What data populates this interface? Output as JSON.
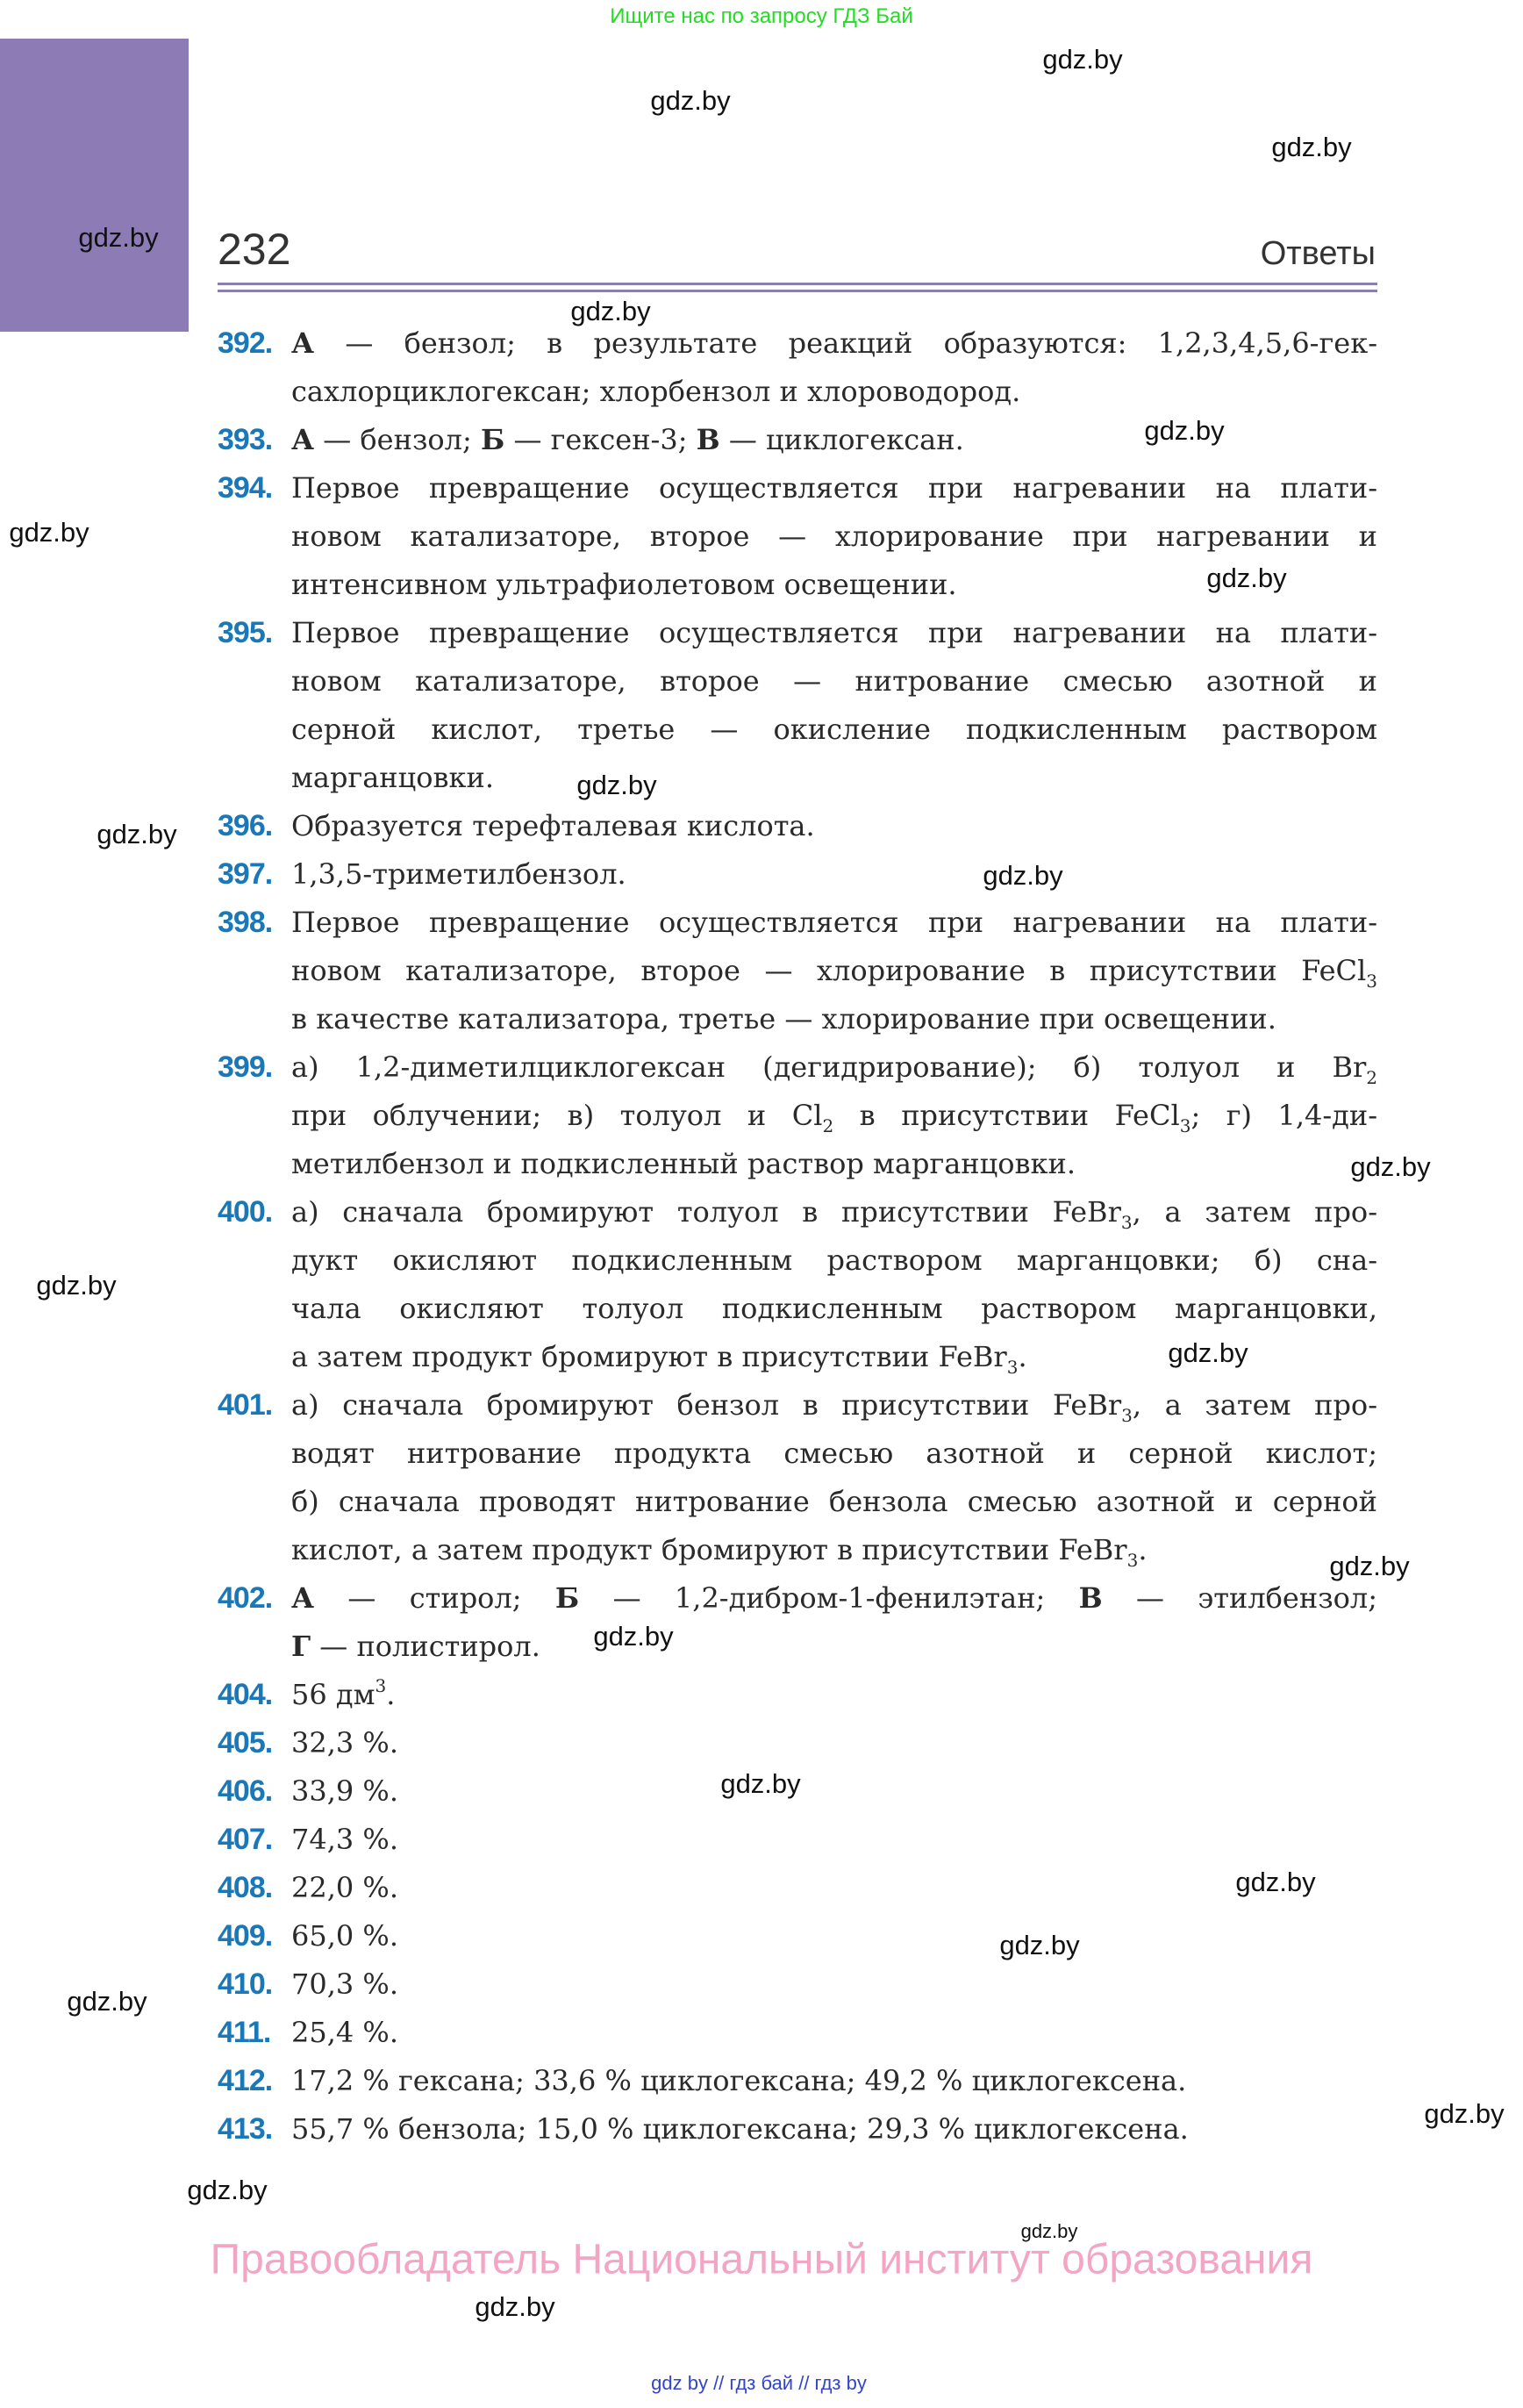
{
  "top_banner": "Ищите нас по запросу ГДЗ Бай",
  "header": {
    "page_number": "232",
    "section": "Ответы"
  },
  "colors": {
    "accent_number": "#1a78b8",
    "side_block": "#8c7bb5",
    "rule": "#8c7fb0",
    "banner": "#22dd22",
    "owner": "#f2a6c4"
  },
  "items": [
    {
      "num": "392.",
      "lines": [
        [
          {
            "b": "А"
          },
          " — бензол; в результате реакций образуются: 1,2,3,4,5,6-гек-"
        ],
        [
          "сахлорциклогексан; хлорбензол и хлороводород."
        ]
      ]
    },
    {
      "num": "393.",
      "lines": [
        [
          {
            "b": "А"
          },
          " — бензол; ",
          {
            "b": "Б"
          },
          " — гексен-3; ",
          {
            "b": "В"
          },
          " — циклогексан."
        ]
      ]
    },
    {
      "num": "394.",
      "lines": [
        [
          "Первое превращение осуществляется при нагревании на плати-"
        ],
        [
          "новом катализаторе, второе — хлорирование при нагревании и"
        ],
        [
          "интенсивном ультрафиолетовом освещении."
        ]
      ]
    },
    {
      "num": "395.",
      "lines": [
        [
          "Первое превращение осуществляется при нагревании на плати-"
        ],
        [
          "новом катализаторе, второе — нитрование смесью азотной и"
        ],
        [
          "серной кислот, третье — окисление подкисленным раствором"
        ],
        [
          "марганцовки."
        ]
      ]
    },
    {
      "num": "396.",
      "lines": [
        [
          "Образуется терефталевая кислота."
        ]
      ]
    },
    {
      "num": "397.",
      "lines": [
        [
          "1,3,5-триметилбензол."
        ]
      ]
    },
    {
      "num": "398.",
      "lines": [
        [
          "Первое превращение осуществляется при нагревании на плати-"
        ],
        [
          "новом катализаторе, второе — хлорирование в присутствии FeCl",
          {
            "sub": "3"
          }
        ],
        [
          "в качестве катализатора, третье — хлорирование при освещении."
        ]
      ]
    },
    {
      "num": "399.",
      "lines": [
        [
          "а) 1,2-диметилциклогексан (дегидрирование); б) толуол и Br",
          {
            "sub": "2"
          }
        ],
        [
          "при облучении; в) толуол и Cl",
          {
            "sub": "2"
          },
          " в присутствии FeCl",
          {
            "sub": "3"
          },
          "; г) 1,4-ди-"
        ],
        [
          "метилбензол и подкисленный раствор марганцовки."
        ]
      ]
    },
    {
      "num": "400.",
      "lines": [
        [
          "а) сначала бромируют толуол в присутствии FeBr",
          {
            "sub": "3"
          },
          ", а затем про-"
        ],
        [
          "дукт окисляют подкисленным раствором марганцовки; б) сна-"
        ],
        [
          "чала окисляют толуол подкисленным раствором марганцовки,"
        ],
        [
          "а затем продукт бромируют в присутствии FeBr",
          {
            "sub": "3"
          },
          "."
        ]
      ]
    },
    {
      "num": "401.",
      "lines": [
        [
          "а) сначала бромируют бензол в присутствии FeBr",
          {
            "sub": "3"
          },
          ", а затем про-"
        ],
        [
          "водят нитрование продукта смесью азотной и серной кислот;"
        ],
        [
          "б) сначала проводят нитрование бензола смесью азотной и серной"
        ],
        [
          "кислот, а затем продукт бромируют в присутствии FeBr",
          {
            "sub": "3"
          },
          "."
        ]
      ]
    },
    {
      "num": "402.",
      "lines": [
        [
          {
            "b": "А"
          },
          " — стирол; ",
          {
            "b": "Б"
          },
          " — 1,2-дибром-1-фенилэтан; ",
          {
            "b": "В"
          },
          " — этилбензол;"
        ],
        [
          {
            "b": "Г"
          },
          " — полистирол."
        ]
      ]
    },
    {
      "num": "404.",
      "lines": [
        [
          "56 дм",
          {
            "sup": "3"
          },
          "."
        ]
      ]
    },
    {
      "num": "405.",
      "lines": [
        [
          "32,3 %."
        ]
      ]
    },
    {
      "num": "406.",
      "lines": [
        [
          "33,9 %."
        ]
      ]
    },
    {
      "num": "407.",
      "lines": [
        [
          "74,3 %."
        ]
      ]
    },
    {
      "num": "408.",
      "lines": [
        [
          "22,0 %."
        ]
      ]
    },
    {
      "num": "409.",
      "lines": [
        [
          "65,0 %."
        ]
      ]
    },
    {
      "num": "410.",
      "lines": [
        [
          "70,3 %."
        ]
      ]
    },
    {
      "num": "411.",
      "lines": [
        [
          "25,4 %."
        ]
      ]
    },
    {
      "num": "412.",
      "lines": [
        [
          "17,2 % гексана; 33,6 % циклогексана; 49,2 % циклогексена."
        ]
      ]
    },
    {
      "num": "413.",
      "lines": [
        [
          "55,7 % бензола; 15,0 % циклогексана; 29,3 % циклогексена."
        ]
      ]
    }
  ],
  "watermarks": [
    "gdz.by",
    "gdz.by",
    "gdz.by",
    "gdz.by",
    "gdz.by",
    "gdz.by",
    "gdz.by",
    "gdz.by",
    "gdz.by",
    "gdz.by",
    "gdz.by",
    "gdz.by",
    "gdz.by",
    "gdz.by",
    "gdz.by",
    "gdz.by",
    "gdz.by",
    "gdz.by",
    "gdz.by",
    "gdz.by",
    "gdz.by",
    "gdz.by",
    "gdz.by",
    "gdz.by"
  ],
  "owner_watermark": "Правообладатель Национальный институт образования",
  "footer": "gdz by  //  гдз бай  //  гдз by"
}
